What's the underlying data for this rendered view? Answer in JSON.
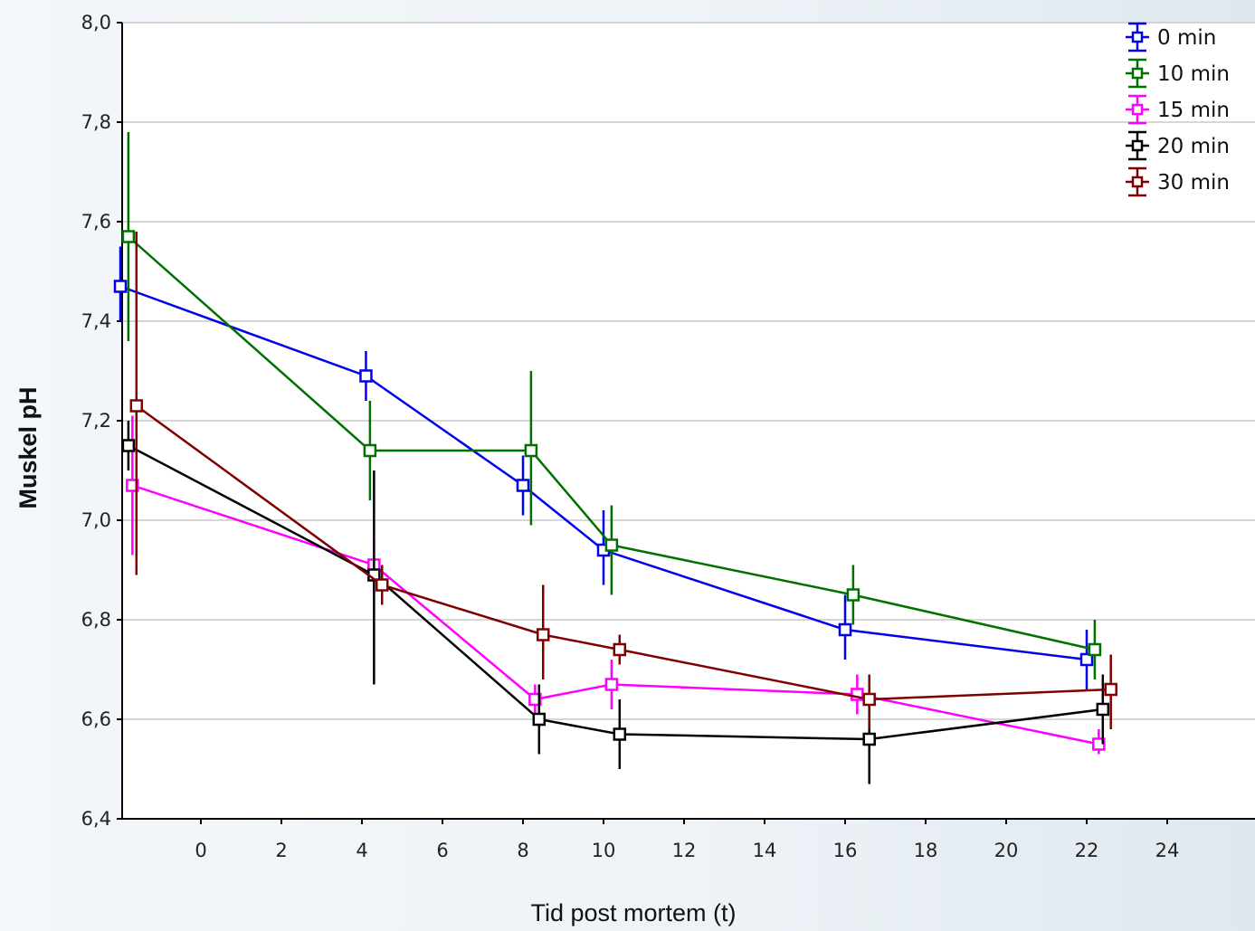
{
  "chart_data": {
    "type": "line",
    "xlabel": "Tid post mortem (t)",
    "ylabel": "Muskel pH",
    "x_tick_labels": [
      "0",
      "2",
      "4",
      "6",
      "8",
      "10",
      "12",
      "14",
      "16",
      "18",
      "20",
      "22",
      "24"
    ],
    "y_tick_labels": [
      "6,4",
      "6,6",
      "6,8",
      "7,0",
      "7,2",
      "7,4",
      "7,6",
      "7,8",
      "8,0"
    ],
    "ylim": [
      6.4,
      8.0
    ],
    "grid": "horizontal",
    "legend_position": "top-right",
    "series": [
      {
        "name": "0 min",
        "color": "#0000ee",
        "x": [
          -2.0,
          4.1,
          8.0,
          10.0,
          16.0,
          22.0
        ],
        "y": [
          7.47,
          7.29,
          7.07,
          6.94,
          6.78,
          6.72
        ],
        "err_low": [
          7.4,
          7.24,
          7.01,
          6.87,
          6.72,
          6.66
        ],
        "err_high": [
          7.55,
          7.34,
          7.13,
          7.02,
          6.85,
          6.78
        ]
      },
      {
        "name": "10 min",
        "color": "#007000",
        "x": [
          -1.8,
          4.2,
          8.2,
          10.2,
          16.2,
          22.2
        ],
        "y": [
          7.57,
          7.14,
          7.14,
          6.95,
          6.85,
          6.74
        ],
        "err_low": [
          7.36,
          7.04,
          6.99,
          6.85,
          6.79,
          6.68
        ],
        "err_high": [
          7.78,
          7.24,
          7.3,
          7.03,
          6.91,
          6.8
        ]
      },
      {
        "name": "15 min",
        "color": "#ff00ff",
        "x": [
          -1.7,
          4.3,
          8.3,
          10.2,
          16.3,
          22.3
        ],
        "y": [
          7.07,
          6.91,
          6.64,
          6.67,
          6.65,
          6.55
        ],
        "err_low": [
          6.93,
          6.85,
          6.61,
          6.62,
          6.61,
          6.53
        ],
        "err_high": [
          7.21,
          6.96,
          6.67,
          6.72,
          6.69,
          6.58
        ]
      },
      {
        "name": "20 min",
        "color": "#000000",
        "x": [
          -1.8,
          4.3,
          8.4,
          10.4,
          16.6,
          22.4
        ],
        "y": [
          7.15,
          6.89,
          6.6,
          6.57,
          6.56,
          6.62
        ],
        "err_low": [
          7.1,
          6.67,
          6.53,
          6.5,
          6.47,
          6.55
        ],
        "err_high": [
          7.2,
          7.1,
          6.67,
          6.64,
          6.63,
          6.69
        ]
      },
      {
        "name": "30 min",
        "color": "#800000",
        "x": [
          -1.6,
          4.5,
          8.5,
          10.4,
          16.6,
          22.6
        ],
        "y": [
          7.23,
          6.87,
          6.77,
          6.74,
          6.64,
          6.66
        ],
        "err_low": [
          6.89,
          6.83,
          6.68,
          6.71,
          6.58,
          6.58
        ],
        "err_high": [
          7.58,
          6.91,
          6.87,
          6.77,
          6.69,
          6.73
        ]
      }
    ]
  }
}
